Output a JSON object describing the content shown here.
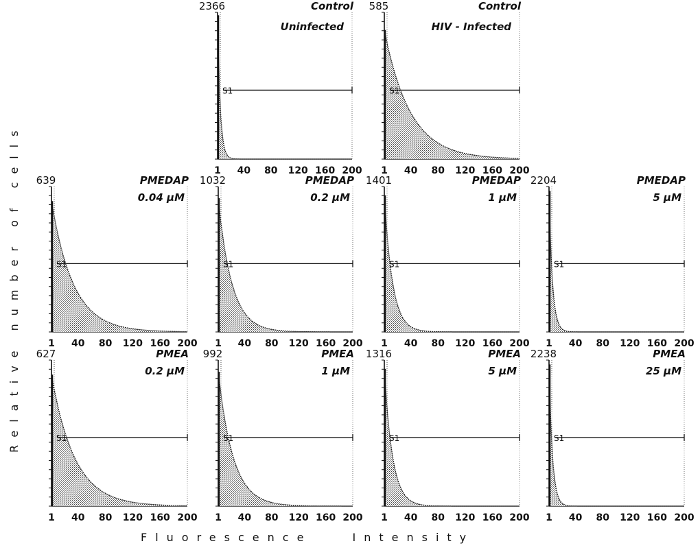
{
  "chart_data": {
    "type": "area",
    "ylabel": "Relative number of cells",
    "xlabel": "Fluorescence Intensity",
    "x_ticks": [
      "1",
      "40",
      "80",
      "120",
      "160",
      "200"
    ],
    "xlim": [
      1,
      200
    ],
    "gate_label": "S1",
    "panels": [
      {
        "id": "control-uninfected",
        "count": "2366",
        "drug": "Control",
        "condition": "Uninfected",
        "decay": 4,
        "peak": 0.98
      },
      {
        "id": "control-hiv",
        "count": "585",
        "drug": "Control",
        "condition": "HIV - Infected",
        "decay": 38,
        "peak": 0.88
      },
      {
        "id": "pmedap-0.04",
        "count": "639",
        "drug": "PMEDAP",
        "condition": "0.04 μM",
        "decay": 32,
        "peak": 0.9
      },
      {
        "id": "pmedap-0.2",
        "count": "1032",
        "drug": "PMEDAP",
        "condition": "0.2 μM",
        "decay": 20,
        "peak": 0.92
      },
      {
        "id": "pmedap-1",
        "count": "1401",
        "drug": "PMEDAP",
        "condition": "1 μM",
        "decay": 12,
        "peak": 0.94
      },
      {
        "id": "pmedap-5",
        "count": "2204",
        "drug": "PMEDAP",
        "condition": "5 μM",
        "decay": 5,
        "peak": 0.97
      },
      {
        "id": "pmea-0.2",
        "count": "627",
        "drug": "PMEA",
        "condition": "0.2 μM",
        "decay": 34,
        "peak": 0.9
      },
      {
        "id": "pmea-1",
        "count": "992",
        "drug": "PMEA",
        "condition": "1 μM",
        "decay": 22,
        "peak": 0.92
      },
      {
        "id": "pmea-5",
        "count": "1316",
        "drug": "PMEA",
        "condition": "5 μM",
        "decay": 12,
        "peak": 0.94
      },
      {
        "id": "pmea-25",
        "count": "2238",
        "drug": "PMEA",
        "condition": "25 μM",
        "decay": 5,
        "peak": 0.97
      }
    ]
  }
}
